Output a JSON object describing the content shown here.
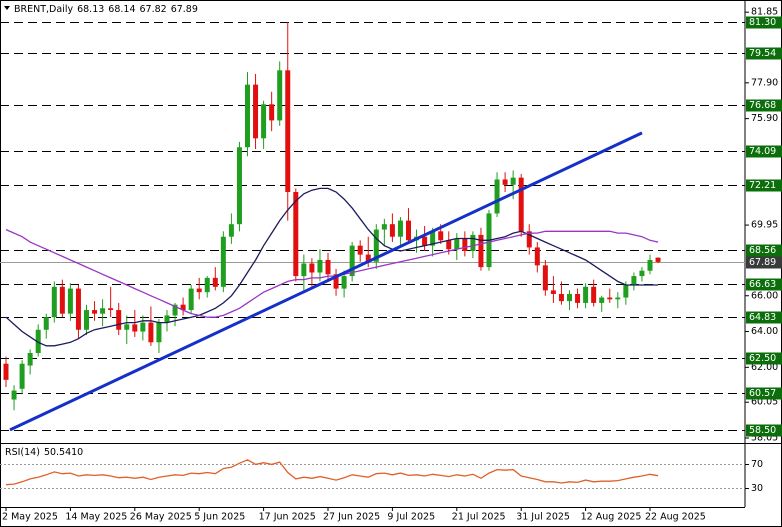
{
  "chart_data": {
    "type": "candlestick",
    "symbol": "BRENT,Daily",
    "categories": [
      "2 May 2025",
      null,
      null,
      null,
      null,
      null,
      null,
      null,
      "14 May 2025",
      null,
      null,
      null,
      null,
      null,
      null,
      null,
      "26 May 2025",
      null,
      null,
      null,
      null,
      null,
      null,
      null,
      "5 Jun 2025",
      null,
      null,
      null,
      null,
      null,
      null,
      null,
      "17 Jun 2025",
      null,
      null,
      null,
      null,
      null,
      null,
      null,
      "27 Jun 2025",
      null,
      null,
      null,
      null,
      null,
      null,
      null,
      "9 Jul 2025",
      null,
      null,
      null,
      null,
      null,
      null,
      null,
      "21 Jul 2025",
      null,
      null,
      null,
      null,
      null,
      null,
      null,
      "31 Jul 2025",
      null,
      null,
      null,
      null,
      null,
      null,
      null,
      "12 Aug 2025",
      null,
      null,
      null,
      null,
      null,
      null,
      null,
      "22 Aug 2025",
      null
    ],
    "open": [
      62.2,
      60.2,
      60.8,
      62.1,
      62.8,
      64.1,
      64.8,
      66.5,
      65.0,
      66.4,
      64.1,
      65.2,
      65.0,
      65.3,
      65.2,
      64.1,
      64.4,
      64.0,
      64.5,
      63.4,
      64.5,
      64.9,
      65.5,
      65.2,
      66.4,
      66.2,
      67.0,
      66.5,
      69.3,
      70.0,
      74.3,
      77.8,
      74.8,
      76.7,
      75.8,
      78.6,
      71.8,
      67.1,
      67.8,
      67.3,
      68.0,
      67.2,
      66.4,
      67.1,
      68.8,
      68.3,
      67.9,
      69.7,
      70.0,
      69.3,
      70.2,
      69.1,
      69.3,
      68.8,
      69.6,
      69.1,
      68.6,
      69.2,
      68.5,
      69.4,
      67.6,
      70.6,
      72.5,
      72.2,
      72.6,
      69.6,
      68.7,
      67.7,
      66.3,
      66.1,
      65.7,
      66.1,
      65.6,
      66.5,
      65.6,
      65.9,
      65.8,
      65.9,
      66.6,
      67.1,
      67.4,
      68.13
    ],
    "high": [
      62.6,
      61.0,
      62.4,
      63.0,
      64.4,
      65.0,
      66.8,
      66.9,
      66.7,
      66.6,
      65.5,
      65.7,
      65.8,
      66.5,
      65.6,
      64.9,
      65.2,
      64.9,
      65.4,
      64.7,
      65.2,
      65.6,
      65.9,
      66.6,
      67.0,
      67.1,
      67.6,
      69.6,
      70.6,
      74.6,
      78.5,
      78.4,
      76.9,
      77.4,
      79.1,
      81.3,
      72.0,
      68.3,
      68.1,
      68.6,
      68.4,
      67.5,
      67.4,
      69.0,
      69.1,
      69.3,
      70.0,
      70.3,
      70.6,
      70.4,
      70.9,
      69.7,
      69.9,
      69.8,
      70.0,
      69.6,
      69.5,
      69.6,
      69.6,
      69.8,
      70.8,
      72.9,
      72.9,
      73.0,
      72.8,
      70.0,
      69.0,
      68.0,
      67.1,
      66.8,
      66.3,
      66.4,
      66.7,
      66.9,
      66.0,
      66.4,
      66.2,
      66.8,
      67.3,
      67.6,
      68.3,
      68.14
    ],
    "low": [
      60.9,
      59.6,
      60.5,
      61.6,
      62.6,
      63.6,
      64.5,
      64.8,
      64.6,
      63.6,
      63.8,
      64.6,
      64.3,
      64.8,
      63.8,
      63.3,
      63.7,
      63.5,
      63.2,
      62.8,
      64.0,
      64.3,
      64.9,
      65.0,
      65.8,
      65.9,
      66.3,
      66.2,
      68.9,
      69.6,
      73.8,
      74.2,
      74.2,
      75.2,
      75.5,
      70.2,
      66.8,
      66.3,
      66.5,
      66.8,
      66.9,
      66.0,
      65.9,
      66.8,
      67.9,
      67.6,
      67.5,
      68.8,
      69.0,
      68.8,
      68.9,
      68.4,
      68.5,
      68.2,
      68.9,
      68.3,
      68.0,
      68.2,
      68.1,
      67.4,
      67.4,
      70.4,
      71.8,
      71.4,
      69.3,
      68.3,
      67.3,
      66.0,
      65.6,
      65.5,
      65.2,
      65.3,
      65.3,
      65.4,
      65.1,
      65.6,
      65.3,
      65.5,
      66.3,
      66.8,
      67.2,
      67.82
    ],
    "close": [
      61.3,
      60.7,
      62.2,
      62.8,
      64.1,
      64.8,
      66.5,
      65.0,
      66.4,
      64.1,
      65.2,
      65.0,
      65.3,
      65.2,
      64.1,
      64.4,
      64.0,
      64.5,
      63.4,
      64.5,
      64.9,
      65.5,
      65.2,
      66.4,
      66.2,
      67.0,
      66.5,
      69.3,
      70.0,
      74.3,
      77.8,
      74.8,
      76.7,
      75.8,
      78.6,
      71.8,
      67.1,
      67.8,
      67.3,
      68.0,
      67.2,
      66.4,
      67.1,
      68.8,
      68.3,
      67.9,
      69.7,
      70.0,
      69.3,
      70.2,
      69.1,
      69.3,
      68.8,
      69.6,
      69.1,
      68.6,
      69.2,
      68.5,
      69.4,
      67.6,
      70.6,
      72.5,
      72.2,
      72.6,
      69.6,
      68.7,
      67.7,
      66.3,
      66.1,
      65.7,
      66.1,
      65.6,
      66.5,
      65.6,
      65.9,
      65.8,
      65.9,
      66.6,
      67.1,
      67.4,
      68.0,
      67.89
    ],
    "up_color": "#1f9e1f",
    "down_color": "#e01010",
    "moving_averages": [
      {
        "color": "#1c1c5c",
        "values": [
          64.8,
          64.4,
          64.0,
          63.7,
          63.4,
          63.2,
          63.2,
          63.3,
          63.4,
          63.6,
          63.9,
          64.1,
          64.2,
          64.3,
          64.4,
          64.5,
          64.5,
          64.6,
          64.6,
          64.5,
          64.5,
          64.6,
          64.7,
          64.8,
          64.9,
          65.1,
          65.3,
          65.6,
          66.0,
          66.6,
          67.3,
          68.0,
          68.8,
          69.5,
          70.2,
          70.8,
          71.3,
          71.7,
          71.9,
          72.0,
          72.0,
          71.8,
          71.4,
          70.9,
          70.3,
          69.7,
          69.2,
          68.8,
          68.6,
          68.5,
          68.6,
          68.7,
          68.8,
          68.9,
          69.0,
          69.1,
          69.2,
          69.2,
          69.2,
          69.1,
          69.1,
          69.2,
          69.3,
          69.5,
          69.6,
          69.4,
          69.2,
          69.0,
          68.8,
          68.6,
          68.4,
          68.2,
          68.0,
          67.7,
          67.4,
          67.1,
          66.8,
          66.6,
          66.6,
          66.6,
          66.6,
          66.6
        ]
      },
      {
        "color": "#9a35c6",
        "values": [
          69.7,
          69.5,
          69.3,
          69.0,
          68.8,
          68.6,
          68.4,
          68.2,
          68.0,
          67.8,
          67.6,
          67.4,
          67.2,
          67.0,
          66.8,
          66.6,
          66.4,
          66.2,
          66.0,
          65.8,
          65.6,
          65.4,
          65.2,
          65.0,
          64.9,
          64.8,
          64.8,
          64.9,
          65.1,
          65.3,
          65.6,
          65.9,
          66.2,
          66.4,
          66.6,
          66.8,
          66.9,
          66.9,
          67.0,
          67.0,
          67.1,
          67.1,
          67.2,
          67.3,
          67.4,
          67.5,
          67.6,
          67.7,
          67.8,
          67.9,
          68.0,
          68.1,
          68.2,
          68.3,
          68.4,
          68.5,
          68.6,
          68.7,
          68.8,
          68.9,
          69.0,
          69.1,
          69.2,
          69.3,
          69.4,
          69.5,
          69.5,
          69.6,
          69.6,
          69.6,
          69.6,
          69.6,
          69.6,
          69.6,
          69.6,
          69.6,
          69.5,
          69.5,
          69.4,
          69.3,
          69.1,
          69.0
        ]
      }
    ],
    "trendline": {
      "color": "#1530c8",
      "x": [
        0.5,
        79
      ],
      "y": [
        58.5,
        75.1
      ]
    },
    "levels": [
      {
        "value": 81.3,
        "label": "81.30"
      },
      79.54,
      76.68,
      74.09,
      72.21,
      68.56,
      66.63,
      64.83,
      {
        "value": 62.5,
        "label": "62.50"
      },
      60.57,
      {
        "value": 58.5,
        "label": "58.50"
      }
    ],
    "level_color": "#0b6e0b",
    "last_price_color": "#3a3a3a",
    "ylim": [
      57.77,
      82.53
    ],
    "yticks": [
      81.85,
      {
        "value": 77.9,
        "label": "77.90"
      },
      {
        "value": 75.9,
        "label": "75.90"
      },
      69.95,
      {
        "value": 66,
        "label": "66.00"
      },
      {
        "value": 64,
        "label": "64.00"
      },
      {
        "value": 62,
        "label": "62.00"
      },
      60.05,
      58.05
    ],
    "rsi": {
      "name": "RSI(14)",
      "current": {
        "value": 50.541,
        "label": "50.5410"
      },
      "color": "#e0602a",
      "values": [
        35,
        36,
        40,
        45,
        48,
        52,
        57,
        54,
        55,
        50,
        52,
        51,
        52,
        50,
        47,
        48,
        46,
        48,
        44,
        48,
        50,
        52,
        51,
        55,
        54,
        56,
        54,
        63,
        65,
        72,
        78,
        70,
        73,
        70,
        74,
        56,
        45,
        48,
        46,
        49,
        46,
        43,
        47,
        52,
        50,
        48,
        54,
        55,
        52,
        55,
        51,
        52,
        50,
        53,
        51,
        49,
        52,
        50,
        53,
        46,
        55,
        61,
        60,
        61,
        50,
        47,
        44,
        40,
        40,
        38,
        40,
        39,
        43,
        40,
        41,
        41,
        42,
        45,
        48,
        50,
        53,
        50.541
      ],
      "ylim": [
        0,
        100
      ],
      "yticks": [
        70,
        30
      ]
    }
  }
}
